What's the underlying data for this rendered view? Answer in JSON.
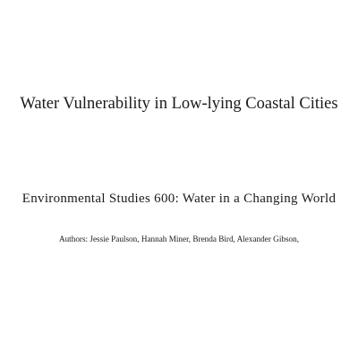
{
  "document": {
    "title": "Water Vulnerability in Low-lying Coastal Cities",
    "course": "Environmental Studies 600: Water in a Changing World",
    "authors": "Authors: Jessie Paulson, Hannah Miner, Brenda Bird, Alexander Gibson,"
  }
}
